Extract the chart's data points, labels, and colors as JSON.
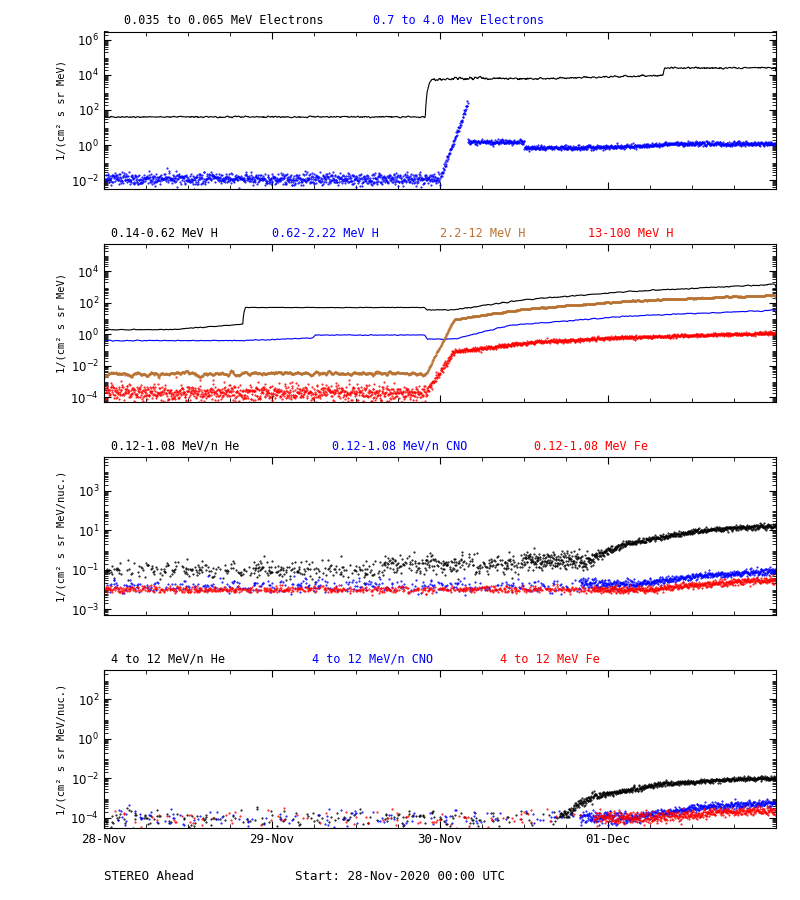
{
  "title_main": "STEREO Ahead",
  "subtitle": "Start: 28-Nov-2020 00:00 UTC",
  "xtick_labels": [
    "28-Nov",
    "29-Nov",
    "30-Nov",
    "01-Dec"
  ],
  "xtick_positions": [
    0,
    24,
    48,
    72
  ],
  "panel0": {
    "label1": "0.035 to 0.065 MeV Electrons",
    "label2": "0.7 to 4.0 Mev Electrons",
    "color1": "black",
    "color2": "blue",
    "ylabel": "1/(cm² s sr MeV)",
    "ylim": [
      0.003,
      3000000.0
    ],
    "yticks": [
      0.01,
      1,
      100,
      10000,
      1000000
    ]
  },
  "panel1": {
    "label1": "0.14-0.62 MeV H",
    "label2": "0.62-2.22 MeV H",
    "label3": "2.2-12 MeV H",
    "label4": "13-100 MeV H",
    "color1": "black",
    "color2": "blue",
    "color3": "#b87333",
    "color4": "red",
    "ylabel": "1/(cm² s sr MeV)",
    "ylim": [
      5e-05,
      500000.0
    ],
    "yticks": [
      0.0001,
      0.01,
      1,
      100,
      10000.0
    ]
  },
  "panel2": {
    "label1": "0.12-1.08 MeV/n He",
    "label2": "0.12-1.08 MeV/n CNO",
    "label3": "0.12-1.08 MeV Fe",
    "color1": "black",
    "color2": "blue",
    "color3": "red",
    "ylabel": "1/(cm² s sr MeV/nuc.)",
    "ylim": [
      0.0005,
      50000.0
    ],
    "yticks": [
      0.001,
      0.1,
      10,
      1000.0
    ]
  },
  "panel3": {
    "label1": "4 to 12 MeV/n He",
    "label2": "4 to 12 MeV/n CNO",
    "label3": "4 to 12 MeV Fe",
    "color1": "black",
    "color2": "blue",
    "color3": "red",
    "ylabel": "1/(cm² s sr MeV/nuc.)",
    "ylim": [
      3e-05,
      3000.0
    ],
    "yticks": [
      0.0001,
      0.01,
      1,
      100
    ]
  }
}
